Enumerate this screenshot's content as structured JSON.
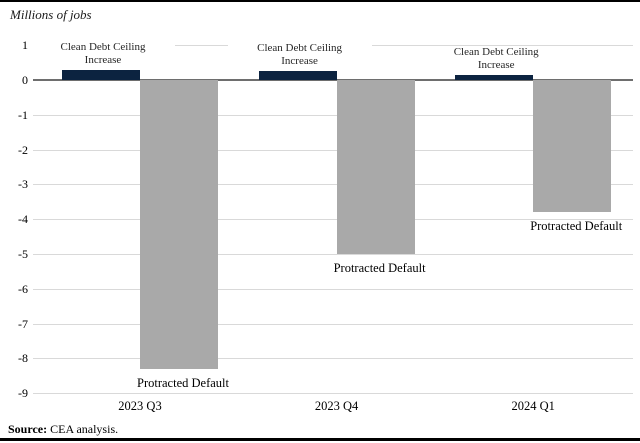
{
  "chart_data": {
    "type": "bar",
    "title": "Millions of jobs",
    "categories": [
      "2023 Q3",
      "2023 Q4",
      "2024 Q1"
    ],
    "series": [
      {
        "name": "Clean Debt Ceiling Increase",
        "label_lines": [
          "Clean Debt Ceiling",
          "Increase"
        ],
        "values": [
          0.3,
          0.25,
          0.15
        ],
        "color": "#0c2340"
      },
      {
        "name": "Protracted Default",
        "label_lines": [
          "Protracted Default"
        ],
        "values": [
          -8.3,
          -5.0,
          -3.8
        ],
        "color": "#a9a9a9"
      }
    ],
    "xlabel": "",
    "ylabel": "",
    "ylim": [
      -9,
      1
    ],
    "ytick_step": 1,
    "yticks": [
      1,
      0,
      -1,
      -2,
      -3,
      -4,
      -5,
      -6,
      -7,
      -8,
      -9
    ],
    "grid": true,
    "legend_position": "labels-on-bars"
  },
  "colors": {
    "navy_bar": "#0c2340",
    "gray_bar": "#a9a9a9",
    "gridline": "#d9d9d9",
    "zero_line": "#6e6e6e",
    "frame_border": "#000000"
  },
  "source": {
    "label": "Source:",
    "text": "CEA analysis."
  }
}
